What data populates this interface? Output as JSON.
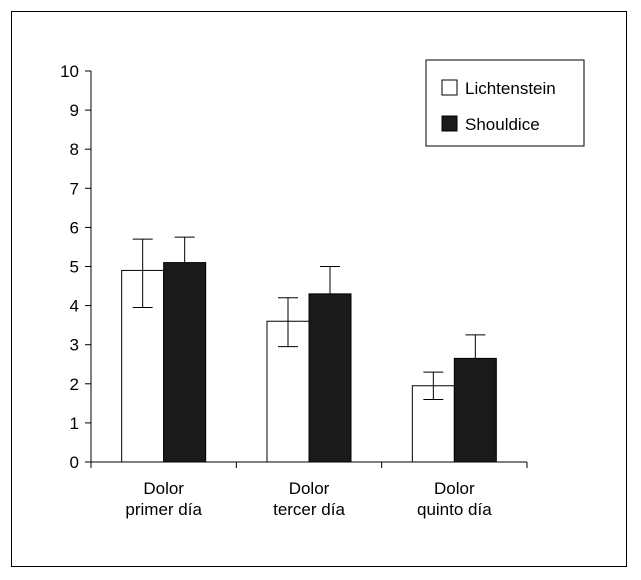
{
  "chart_data": {
    "type": "bar",
    "categories": [
      [
        "Dolor",
        "primer día"
      ],
      [
        "Dolor",
        "tercer día"
      ],
      [
        "Dolor",
        "quinto día"
      ]
    ],
    "series": [
      {
        "name": "Lichtenstein",
        "values": [
          4.9,
          3.6,
          1.95
        ],
        "error_low": [
          3.95,
          2.95,
          1.6
        ],
        "error_high": [
          5.7,
          4.2,
          2.3
        ],
        "color": "#ffffff"
      },
      {
        "name": "Shouldice",
        "values": [
          5.1,
          4.3,
          2.65
        ],
        "error_low": [
          5.1,
          4.3,
          2.65
        ],
        "error_high": [
          5.75,
          5.0,
          3.25
        ],
        "color": "#1a1a1a"
      }
    ],
    "ylim": [
      0,
      10
    ],
    "yticks": [
      0,
      1,
      2,
      3,
      4,
      5,
      6,
      7,
      8,
      9,
      10
    ],
    "legend_position": "top-right",
    "grid": false
  }
}
